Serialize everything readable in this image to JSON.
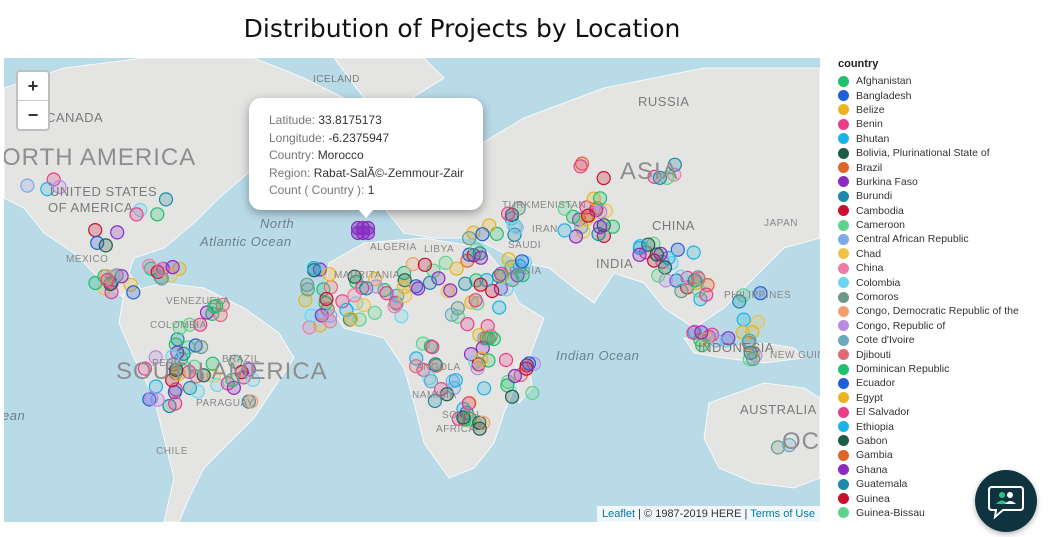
{
  "title": "Distribution of Projects by Location",
  "zoom": {
    "in_label": "+",
    "out_label": "−"
  },
  "map_labels": {
    "north_america": "ORTH AMERICA",
    "south_america": "SOUTH AMERICA",
    "asia": "ASIA",
    "iceland": "ICELAND",
    "canada": "CANADA",
    "russia": "RUSSIA",
    "united_states_1": "UNITED STATES",
    "united_states_2": "OF AMERICA",
    "mexico": "MEXICO",
    "venezuela": "VENEZUELA",
    "colombia": "COLOMBIA",
    "peru": "PERU",
    "brazil": "BRAZIL",
    "paraguay": "PARAGUAY",
    "chile": "CHILE",
    "algeria": "ALGERIA",
    "libya": "LIBYA",
    "mauritania": "MAURITANIA",
    "angola": "ANGOLA",
    "namibia": "NAMIBIA",
    "south_africa_1": "SOUTH",
    "south_africa_2": "AFRICA",
    "turkmenistan": "TURKMENISTAN",
    "iran": "IRAN",
    "saudi_1": "SAUDI",
    "saudi_2": "ARABIA",
    "china": "CHINA",
    "india": "INDIA",
    "japan": "JAPAN",
    "philippines": "PHILIPPINES",
    "indonesia": "INDONESIA",
    "new_guinea": "NEW GUINE",
    "australia": "AUSTRALIA",
    "oce": "OCE",
    "atlantic_1": "North",
    "atlantic_2": "Atlantic Ocean",
    "indian_ocean": "Indian Ocean",
    "ean": "ean"
  },
  "popup": {
    "lines": [
      {
        "key": "Latitude: ",
        "value": "33.8175173"
      },
      {
        "key": "Longitude: ",
        "value": "-6.2375947"
      },
      {
        "key": "Country: ",
        "value": "Morocco"
      },
      {
        "key": "Region: ",
        "value": "Rabat-SalÃ©-Zemmour-Zair"
      },
      {
        "key": "Count ( Country ): ",
        "value": "1"
      }
    ]
  },
  "attribution": {
    "leaflet": "Leaflet",
    "copyright": " | © 1987-2019 HERE | ",
    "terms": "Terms of Use"
  },
  "legend": {
    "title": "country",
    "items": [
      {
        "label": "Afghanistan",
        "color": "#1fbf6e"
      },
      {
        "label": "Bangladesh",
        "color": "#1f5fd6"
      },
      {
        "label": "Belize",
        "color": "#e8b41f"
      },
      {
        "label": "Benin",
        "color": "#e83e8c"
      },
      {
        "label": "Bhutan",
        "color": "#1ab3e6"
      },
      {
        "label": "Bolivia, Plurinational State of",
        "color": "#1e5c4a"
      },
      {
        "label": "Brazil",
        "color": "#e0642a"
      },
      {
        "label": "Burkina Faso",
        "color": "#8a2bc2"
      },
      {
        "label": "Burundi",
        "color": "#1a8aa8"
      },
      {
        "label": "Cambodia",
        "color": "#c8102e"
      },
      {
        "label": "Cameroon",
        "color": "#5fd38d"
      },
      {
        "label": "Central African Republic",
        "color": "#7ea8e8"
      },
      {
        "label": "Chad",
        "color": "#f0c24a"
      },
      {
        "label": "China",
        "color": "#f07aa8"
      },
      {
        "label": "Colombia",
        "color": "#6cd6f0"
      },
      {
        "label": "Comoros",
        "color": "#6b9a8a"
      },
      {
        "label": "Congo, Democratic Republic of the",
        "color": "#f0a070"
      },
      {
        "label": "Congo, Republic of",
        "color": "#b98ae0"
      },
      {
        "label": "Cote d'Ivoire",
        "color": "#6aa8c0"
      },
      {
        "label": "Djibouti",
        "color": "#e06a7a"
      },
      {
        "label": "Dominican Republic",
        "color": "#1fbf6e"
      },
      {
        "label": "Ecuador",
        "color": "#1f5fd6"
      },
      {
        "label": "Egypt",
        "color": "#e8b41f"
      },
      {
        "label": "El Salvador",
        "color": "#e83e8c"
      },
      {
        "label": "Ethiopia",
        "color": "#1ab3e6"
      },
      {
        "label": "Gabon",
        "color": "#1e5c4a"
      },
      {
        "label": "Gambia",
        "color": "#e0642a"
      },
      {
        "label": "Ghana",
        "color": "#8a2bc2"
      },
      {
        "label": "Guatemala",
        "color": "#1a8aa8"
      },
      {
        "label": "Guinea",
        "color": "#c8102e"
      },
      {
        "label": "Guinea-Bissau",
        "color": "#5fd38d"
      }
    ]
  }
}
